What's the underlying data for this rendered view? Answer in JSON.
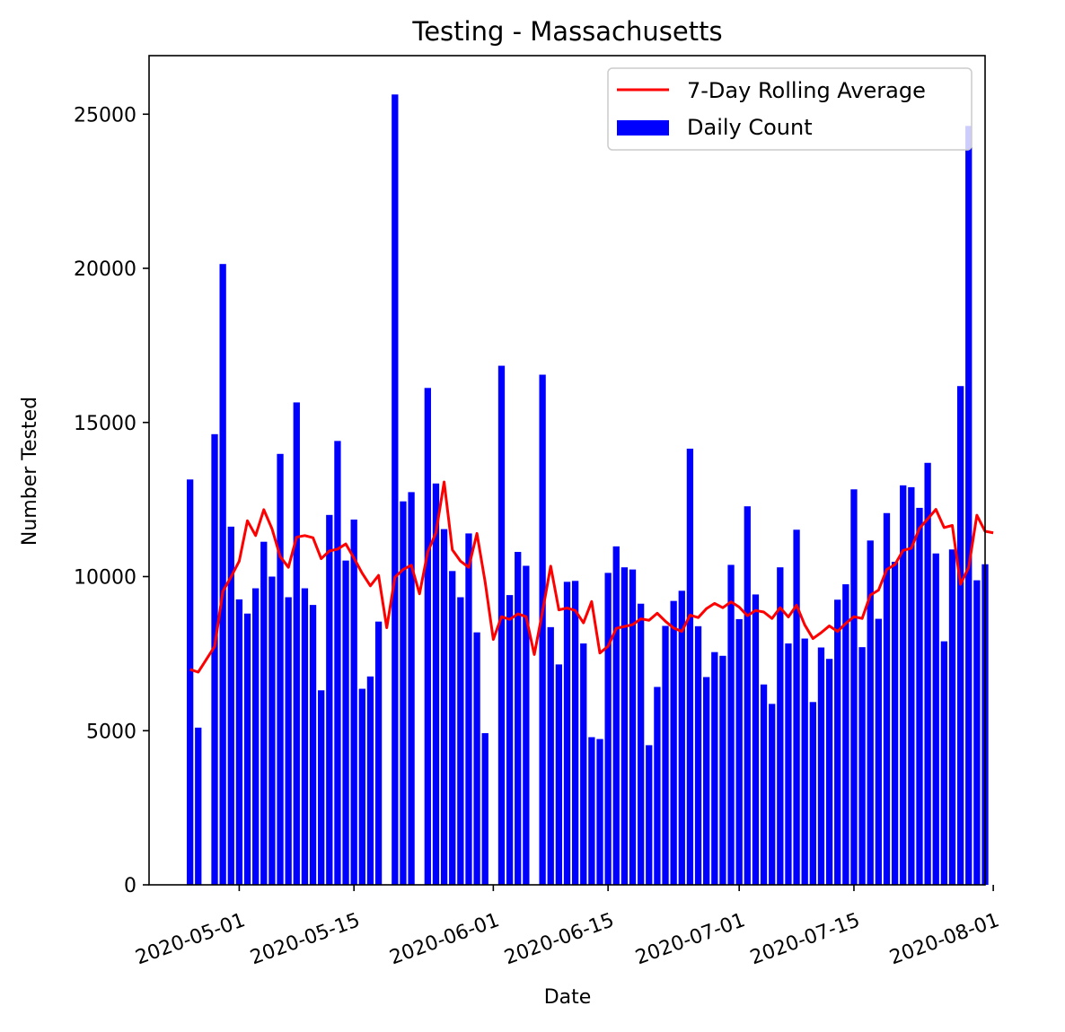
{
  "chart_data": {
    "type": "bar",
    "title": "Testing - Massachusetts",
    "xlabel": "Date",
    "ylabel": "Number Tested",
    "ylim": [
      0,
      26900
    ],
    "xlim": [
      "2020-04-20",
      "2020-07-31"
    ],
    "yticks": [
      0,
      5000,
      10000,
      15000,
      20000,
      25000
    ],
    "xticks": [
      "2020-05-01",
      "2020-05-15",
      "2020-06-01",
      "2020-06-15",
      "2020-07-01",
      "2020-07-15",
      "2020-08-01"
    ],
    "grid": false,
    "legend": {
      "position": "top-right",
      "entries": [
        "7-Day Rolling Average",
        "Daily Count"
      ]
    },
    "colors": {
      "bars": "#0000ff",
      "line": "#ff0000"
    },
    "series": [
      {
        "name": "Daily Count",
        "type": "bar",
        "points": [
          [
            "2020-04-25",
            13150
          ],
          [
            "2020-04-26",
            5100
          ],
          [
            "2020-04-28",
            14620
          ],
          [
            "2020-04-29",
            20140
          ],
          [
            "2020-04-30",
            11620
          ],
          [
            "2020-05-01",
            9260
          ],
          [
            "2020-05-02",
            8800
          ],
          [
            "2020-05-03",
            9620
          ],
          [
            "2020-05-04",
            11130
          ],
          [
            "2020-05-05",
            10000
          ],
          [
            "2020-05-06",
            13980
          ],
          [
            "2020-05-07",
            9330
          ],
          [
            "2020-05-08",
            15650
          ],
          [
            "2020-05-09",
            9620
          ],
          [
            "2020-05-10",
            9080
          ],
          [
            "2020-05-11",
            6310
          ],
          [
            "2020-05-12",
            12000
          ],
          [
            "2020-05-13",
            14400
          ],
          [
            "2020-05-14",
            10520
          ],
          [
            "2020-05-15",
            11850
          ],
          [
            "2020-05-16",
            6360
          ],
          [
            "2020-05-17",
            6760
          ],
          [
            "2020-05-18",
            8540
          ],
          [
            "2020-05-20",
            25640
          ],
          [
            "2020-05-21",
            12440
          ],
          [
            "2020-05-22",
            12740
          ],
          [
            "2020-05-24",
            16120
          ],
          [
            "2020-05-25",
            13020
          ],
          [
            "2020-05-26",
            11540
          ],
          [
            "2020-05-27",
            10180
          ],
          [
            "2020-05-28",
            9330
          ],
          [
            "2020-05-29",
            11400
          ],
          [
            "2020-05-30",
            8190
          ],
          [
            "2020-05-31",
            4920
          ],
          [
            "2020-06-02",
            16840
          ],
          [
            "2020-06-03",
            9400
          ],
          [
            "2020-06-04",
            10800
          ],
          [
            "2020-06-05",
            10350
          ],
          [
            "2020-06-07",
            16550
          ],
          [
            "2020-06-08",
            8360
          ],
          [
            "2020-06-09",
            7150
          ],
          [
            "2020-06-10",
            9830
          ],
          [
            "2020-06-11",
            9860
          ],
          [
            "2020-06-12",
            7830
          ],
          [
            "2020-06-13",
            4790
          ],
          [
            "2020-06-14",
            4730
          ],
          [
            "2020-06-15",
            10120
          ],
          [
            "2020-06-16",
            10980
          ],
          [
            "2020-06-17",
            10300
          ],
          [
            "2020-06-18",
            10230
          ],
          [
            "2020-06-19",
            9120
          ],
          [
            "2020-06-20",
            4530
          ],
          [
            "2020-06-21",
            6420
          ],
          [
            "2020-06-22",
            8400
          ],
          [
            "2020-06-23",
            9210
          ],
          [
            "2020-06-24",
            9540
          ],
          [
            "2020-06-25",
            14150
          ],
          [
            "2020-06-26",
            8390
          ],
          [
            "2020-06-27",
            6740
          ],
          [
            "2020-06-28",
            7550
          ],
          [
            "2020-06-29",
            7430
          ],
          [
            "2020-06-30",
            10380
          ],
          [
            "2020-07-01",
            8620
          ],
          [
            "2020-07-02",
            12280
          ],
          [
            "2020-07-03",
            9420
          ],
          [
            "2020-07-04",
            6500
          ],
          [
            "2020-07-05",
            5870
          ],
          [
            "2020-07-06",
            10300
          ],
          [
            "2020-07-07",
            7830
          ],
          [
            "2020-07-08",
            11520
          ],
          [
            "2020-07-09",
            7990
          ],
          [
            "2020-07-10",
            5930
          ],
          [
            "2020-07-11",
            7700
          ],
          [
            "2020-07-12",
            7330
          ],
          [
            "2020-07-13",
            9250
          ],
          [
            "2020-07-14",
            9750
          ],
          [
            "2020-07-15",
            12830
          ],
          [
            "2020-07-16",
            7710
          ],
          [
            "2020-07-17",
            11170
          ],
          [
            "2020-07-18",
            8630
          ],
          [
            "2020-07-19",
            12060
          ],
          [
            "2020-07-20",
            10480
          ],
          [
            "2020-07-21",
            12960
          ],
          [
            "2020-07-22",
            12900
          ],
          [
            "2020-07-23",
            12230
          ],
          [
            "2020-07-24",
            13690
          ],
          [
            "2020-07-25",
            10750
          ],
          [
            "2020-07-26",
            7900
          ],
          [
            "2020-07-27",
            10880
          ],
          [
            "2020-07-28",
            16180
          ],
          [
            "2020-07-29",
            24620
          ],
          [
            "2020-07-30",
            9880
          ],
          [
            "2020-07-31",
            10400
          ]
        ]
      },
      {
        "name": "7-Day Rolling Average",
        "type": "line",
        "points": [
          [
            "2020-04-25",
            6990
          ],
          [
            "2020-04-26",
            6900
          ],
          [
            "2020-04-28",
            7730
          ],
          [
            "2020-04-29",
            9520
          ],
          [
            "2020-04-30",
            9990
          ],
          [
            "2020-05-01",
            10500
          ],
          [
            "2020-05-02",
            11810
          ],
          [
            "2020-05-03",
            11330
          ],
          [
            "2020-05-04",
            12170
          ],
          [
            "2020-05-05",
            11550
          ],
          [
            "2020-05-06",
            10650
          ],
          [
            "2020-05-07",
            10300
          ],
          [
            "2020-05-08",
            11280
          ],
          [
            "2020-05-09",
            11330
          ],
          [
            "2020-05-10",
            11260
          ],
          [
            "2020-05-11",
            10580
          ],
          [
            "2020-05-12",
            10830
          ],
          [
            "2020-05-13",
            10890
          ],
          [
            "2020-05-14",
            11060
          ],
          [
            "2020-05-15",
            10600
          ],
          [
            "2020-05-16",
            10110
          ],
          [
            "2020-05-17",
            9700
          ],
          [
            "2020-05-18",
            10040
          ],
          [
            "2020-05-19",
            8340
          ],
          [
            "2020-05-20",
            9980
          ],
          [
            "2020-05-21",
            10230
          ],
          [
            "2020-05-22",
            10370
          ],
          [
            "2020-05-23",
            9440
          ],
          [
            "2020-05-24",
            10800
          ],
          [
            "2020-05-25",
            11420
          ],
          [
            "2020-05-26",
            13070
          ],
          [
            "2020-05-27",
            10870
          ],
          [
            "2020-05-28",
            10500
          ],
          [
            "2020-05-29",
            10300
          ],
          [
            "2020-05-30",
            11400
          ],
          [
            "2020-05-31",
            9830
          ],
          [
            "2020-06-01",
            7960
          ],
          [
            "2020-06-02",
            8700
          ],
          [
            "2020-06-03",
            8610
          ],
          [
            "2020-06-04",
            8790
          ],
          [
            "2020-06-05",
            8700
          ],
          [
            "2020-06-06",
            7470
          ],
          [
            "2020-06-07",
            8860
          ],
          [
            "2020-06-08",
            10340
          ],
          [
            "2020-06-09",
            8920
          ],
          [
            "2020-06-10",
            8980
          ],
          [
            "2020-06-11",
            8900
          ],
          [
            "2020-06-12",
            8500
          ],
          [
            "2020-06-13",
            9190
          ],
          [
            "2020-06-14",
            7520
          ],
          [
            "2020-06-15",
            7740
          ],
          [
            "2020-06-16",
            8320
          ],
          [
            "2020-06-17",
            8380
          ],
          [
            "2020-06-18",
            8440
          ],
          [
            "2020-06-19",
            8630
          ],
          [
            "2020-06-20",
            8580
          ],
          [
            "2020-06-21",
            8810
          ],
          [
            "2020-06-22",
            8550
          ],
          [
            "2020-06-23",
            8330
          ],
          [
            "2020-06-24",
            8220
          ],
          [
            "2020-06-25",
            8750
          ],
          [
            "2020-06-26",
            8670
          ],
          [
            "2020-06-27",
            8960
          ],
          [
            "2020-06-28",
            9130
          ],
          [
            "2020-06-29",
            8990
          ],
          [
            "2020-06-30",
            9180
          ],
          [
            "2020-07-01",
            9010
          ],
          [
            "2020-07-02",
            8730
          ],
          [
            "2020-07-03",
            8900
          ],
          [
            "2020-07-04",
            8850
          ],
          [
            "2020-07-05",
            8640
          ],
          [
            "2020-07-06",
            8990
          ],
          [
            "2020-07-07",
            8690
          ],
          [
            "2020-07-08",
            9070
          ],
          [
            "2020-07-09",
            8430
          ],
          [
            "2020-07-10",
            7990
          ],
          [
            "2020-07-11",
            8180
          ],
          [
            "2020-07-12",
            8400
          ],
          [
            "2020-07-13",
            8220
          ],
          [
            "2020-07-14",
            8480
          ],
          [
            "2020-07-15",
            8700
          ],
          [
            "2020-07-16",
            8640
          ],
          [
            "2020-07-17",
            9400
          ],
          [
            "2020-07-18",
            9560
          ],
          [
            "2020-07-19",
            10230
          ],
          [
            "2020-07-20",
            10390
          ],
          [
            "2020-07-21",
            10850
          ],
          [
            "2020-07-22",
            10920
          ],
          [
            "2020-07-23",
            11570
          ],
          [
            "2020-07-24",
            11870
          ],
          [
            "2020-07-25",
            12180
          ],
          [
            "2020-07-26",
            11590
          ],
          [
            "2020-07-27",
            11660
          ],
          [
            "2020-07-28",
            9750
          ],
          [
            "2020-07-29",
            10300
          ],
          [
            "2020-07-30",
            11990
          ],
          [
            "2020-07-31",
            11470
          ],
          [
            "2020-08-01",
            11420
          ]
        ]
      }
    ]
  }
}
